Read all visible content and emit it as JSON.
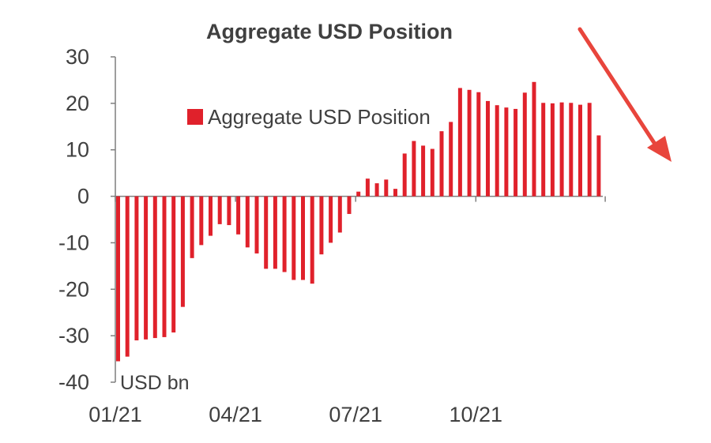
{
  "chart_data": {
    "type": "bar",
    "title": "Aggregate USD Position",
    "unit_label": "USD bn",
    "legend_placement": "top-center",
    "series": [
      {
        "name": "Aggregate USD Position",
        "color": "#e0212b",
        "values": [
          -35.5,
          -34.5,
          -31.0,
          -30.8,
          -30.5,
          -30.3,
          -29.3,
          -23.8,
          -13.3,
          -10.5,
          -8.5,
          -6.0,
          -6.2,
          -8.2,
          -11.0,
          -12.3,
          -15.6,
          -15.6,
          -16.3,
          -18.0,
          -18.0,
          -18.8,
          -12.5,
          -10.0,
          -7.8,
          -3.8,
          1.0,
          3.8,
          2.8,
          3.6,
          1.6,
          9.2,
          11.9,
          10.9,
          10.2,
          14.0,
          16.0,
          23.3,
          22.9,
          22.4,
          20.5,
          19.6,
          19.1,
          18.8,
          22.3,
          24.6,
          20.1,
          20.0,
          20.2,
          20.1,
          19.7,
          20.1,
          13.1
        ]
      }
    ],
    "ylim": [
      -40,
      30
    ],
    "yticks": [
      "30",
      "20",
      "10",
      "0",
      "-10",
      "-20",
      "-30",
      "-40"
    ],
    "ytick_values": [
      30,
      20,
      10,
      0,
      -10,
      -20,
      -30,
      -40
    ],
    "xticks": [
      "01/21",
      "04/21",
      "07/21",
      "10/21"
    ],
    "xtick_indices": [
      0,
      13,
      26,
      39
    ],
    "grid": false
  },
  "annotation": {
    "type": "arrow",
    "color": "#e8453c",
    "direction": "down-right"
  }
}
